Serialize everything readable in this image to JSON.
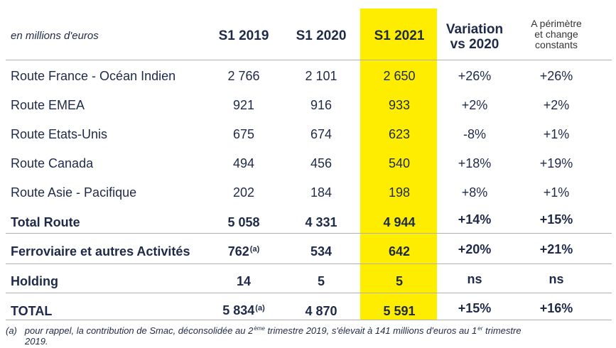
{
  "header": {
    "unit": "en millions d'euros",
    "col_s1_2019": "S1 2019",
    "col_s1_2020": "S1 2020",
    "col_s1_2021": "S1 2021",
    "col_variation_line1": "Variation",
    "col_variation_line2": "vs 2020",
    "col_constant_line1": "A périmètre",
    "col_constant_line2": "et change",
    "col_constant_line3": "constants"
  },
  "rows": [
    {
      "label": "Route France - Océan Indien",
      "s1_2019": "2 766",
      "s1_2020": "2 101",
      "s1_2021": "2 650",
      "variation": "+26%",
      "constant": "+26%"
    },
    {
      "label": "Route EMEA",
      "s1_2019": "921",
      "s1_2020": "916",
      "s1_2021": "933",
      "variation": "+2%",
      "constant": "+2%"
    },
    {
      "label": "Route Etats-Unis",
      "s1_2019": "675",
      "s1_2020": "674",
      "s1_2021": "623",
      "variation": "-8%",
      "constant": "+1%"
    },
    {
      "label": "Route Canada",
      "s1_2019": "494",
      "s1_2020": "456",
      "s1_2021": "540",
      "variation": "+18%",
      "constant": "+19%"
    },
    {
      "label": "Route Asie - Pacifique",
      "s1_2019": "202",
      "s1_2020": "184",
      "s1_2021": "198",
      "variation": "+8%",
      "constant": "+1%"
    },
    {
      "label": "Total Route",
      "s1_2019": "5 058",
      "s1_2020": "4 331",
      "s1_2021": "4 944",
      "variation": "+14%",
      "constant": "+15%"
    },
    {
      "label": "Ferroviaire et autres Activités",
      "s1_2019": "762",
      "s1_2019_note": "(a)",
      "s1_2020": "534",
      "s1_2021": "642",
      "variation": "+20%",
      "constant": "+21%"
    },
    {
      "label": "Holding",
      "s1_2019": "14",
      "s1_2020": "5",
      "s1_2021": "5",
      "variation": "ns",
      "constant": "ns"
    },
    {
      "label": "TOTAL",
      "s1_2019": "5 834",
      "s1_2019_note": "(a)",
      "s1_2020": "4 870",
      "s1_2021": "5 591",
      "variation": "+15%",
      "constant": "+16%"
    }
  ],
  "footnote": {
    "marker": "(a)",
    "text_part1": "pour rappel, la contribution de Smac, déconsolidée au 2",
    "sup1": "ème",
    "text_part2": " trimestre 2019, s'élevait à 141 millions d'euros au 1",
    "sup2": "er",
    "text_part3": " trimestre",
    "text_line2": "2019."
  },
  "colors": {
    "highlight": "#ffed00",
    "text": "#1f2a4a",
    "rule": "#b0b0b0"
  }
}
